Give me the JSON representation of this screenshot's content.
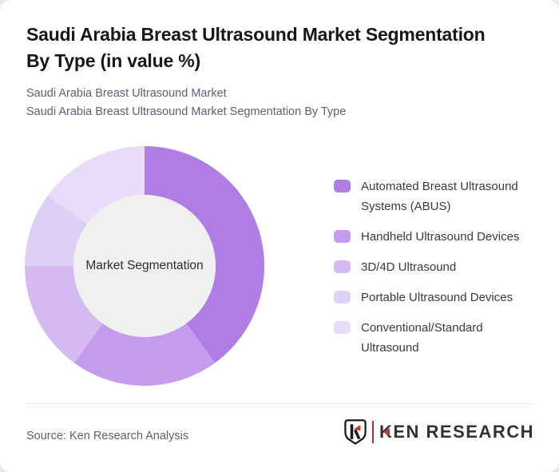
{
  "header": {
    "title_lines": [
      "Saudi Arabia Breast Ultrasound Market Segmentation",
      "By Type (in value %)"
    ],
    "subtitle_lines": [
      "Saudi Arabia Breast Ultrasound Market",
      "Saudi Arabia Breast Ultrasound Market Segmentation By Type"
    ]
  },
  "chart_data": {
    "type": "pie",
    "variant": "donut",
    "title": "Saudi Arabia Breast Ultrasound Market Segmentation By Type (in value %)",
    "center_label": "Market Segmentation",
    "unit": "value %",
    "categories": [
      "Automated Breast Ultrasound Systems (ABUS)",
      "Handheld Ultrasound Devices",
      "3D/4D Ultrasound",
      "Portable Ultrasound Devices",
      "Conventional/Standard Ultrasound"
    ],
    "values": [
      40,
      20,
      15,
      10,
      15
    ],
    "colors": [
      "#b07de4",
      "#c59ced",
      "#d4baf0",
      "#ded0f4",
      "#e9dcf8"
    ],
    "inner_circle_color": "#f0f0f0",
    "start_angle_deg": 0,
    "direction": "clockwise",
    "legend_position": "right"
  },
  "footer": {
    "source": "Source: Ken Research Analysis",
    "logo_text": "KEN RESEARCH"
  },
  "colors": {
    "accent_red": "#c0392b",
    "logo_dark": "#2f3237",
    "card_background": "#ffffff",
    "page_background": "#e9e9e9"
  }
}
